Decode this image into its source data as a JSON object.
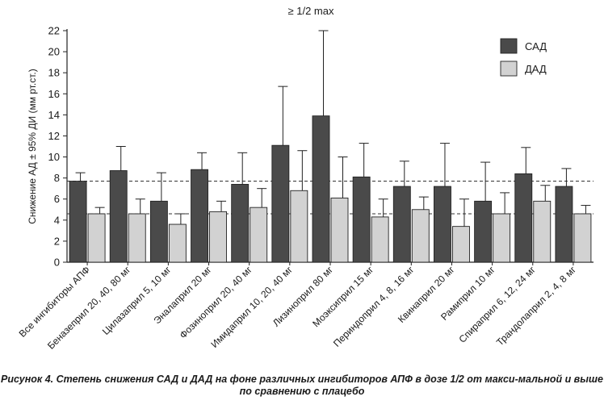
{
  "chart_data": {
    "type": "bar",
    "title": "≥ 1/2 max",
    "ylabel": "Снижение АД ± 95% ДИ (мм рт.ст.)",
    "xlabel": "",
    "ylim": [
      0,
      22
    ],
    "yticks": [
      0,
      2,
      4,
      6,
      8,
      10,
      12,
      14,
      16,
      18,
      20,
      22
    ],
    "legend_position": "top-right",
    "categories": [
      "Все ингибиторы АПФ",
      "Беназеприл 20, 40, 80 мг",
      "Цилазаприл 5, 10 мг",
      "Эналаприл 20 мг",
      "Фозиноприл 20, 40 мг",
      "Имидаприл 10, 20, 40 мг",
      "Лизиноприл 80 мг",
      "Моэксиприл 15 мг",
      "Периндоприл 4, 8, 16 мг",
      "Квинаприл 20 мг",
      "Рамиприл 10 мг",
      "Спираприл 6, 12, 24 мг",
      "Трандолаприл 2, 4, 8 мг"
    ],
    "series": [
      {
        "name": "САД",
        "color": "#4a4a4a",
        "values": [
          7.7,
          8.7,
          5.8,
          8.8,
          7.4,
          11.1,
          13.9,
          8.1,
          7.2,
          7.2,
          5.8,
          8.4,
          7.2
        ],
        "error_upper": [
          8.5,
          11.0,
          8.5,
          10.4,
          10.4,
          16.7,
          22.0,
          11.3,
          9.6,
          11.3,
          9.5,
          10.9,
          8.9
        ]
      },
      {
        "name": "ДАД",
        "color": "#d2d2d2",
        "values": [
          4.6,
          4.6,
          3.6,
          4.8,
          5.2,
          6.8,
          6.1,
          4.3,
          5.0,
          3.4,
          4.6,
          5.8,
          4.6
        ],
        "error_upper": [
          5.2,
          6.0,
          4.6,
          5.8,
          7.0,
          10.6,
          10.0,
          6.0,
          6.2,
          6.0,
          6.6,
          7.3,
          5.4
        ]
      }
    ],
    "reference_lines": [
      7.7,
      4.6
    ]
  },
  "caption": "Рисунок 4. Степень снижения САД и ДАД на фоне различных ингибиторов АПФ в дозе 1/2 от макси-мальной и выше по сравнению с плацебо"
}
